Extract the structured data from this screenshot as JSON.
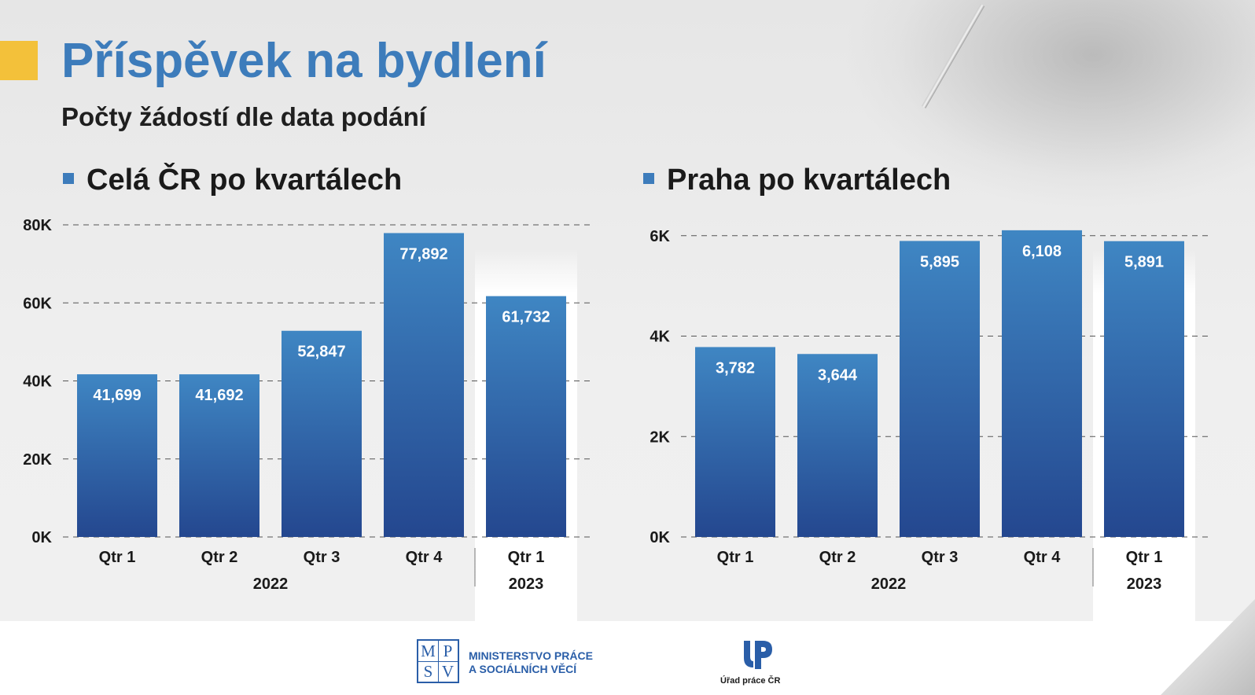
{
  "header": {
    "title": "Příspěvek na bydlení",
    "subtitle": "Počty žádostí dle data podání"
  },
  "colors": {
    "accent": "#f3c13a",
    "title": "#3d7cbb",
    "bar_top": "#3f86c3",
    "bar_bottom": "#24478f"
  },
  "chart_data": [
    {
      "type": "bar",
      "title": "Celá ČR po kvartálech",
      "categories": [
        "Qtr 1",
        "Qtr 2",
        "Qtr 3",
        "Qtr 4",
        "Qtr 1"
      ],
      "year_groups": [
        {
          "label": "2022",
          "count": 4
        },
        {
          "label": "2023",
          "count": 1
        }
      ],
      "values": [
        41699,
        41692,
        52847,
        77892,
        61732
      ],
      "value_labels": [
        "41,699",
        "41,692",
        "52,847",
        "77,892",
        "61,732"
      ],
      "yticks": [
        "0K",
        "20K",
        "40K",
        "60K",
        "80K"
      ],
      "ytick_values": [
        0,
        20000,
        40000,
        60000,
        80000
      ],
      "ylim": [
        0,
        80000
      ],
      "grid": true,
      "highlight_last_group": true
    },
    {
      "type": "bar",
      "title": "Praha po kvartálech",
      "categories": [
        "Qtr 1",
        "Qtr 2",
        "Qtr 3",
        "Qtr 4",
        "Qtr 1"
      ],
      "year_groups": [
        {
          "label": "2022",
          "count": 4
        },
        {
          "label": "2023",
          "count": 1
        }
      ],
      "values": [
        3782,
        3644,
        5895,
        6108,
        5891
      ],
      "value_labels": [
        "3,782",
        "3,644",
        "5,895",
        "6,108",
        "5,891"
      ],
      "yticks": [
        "0K",
        "2K",
        "4K",
        "6K"
      ],
      "ytick_values": [
        0,
        2000,
        4000,
        6000
      ],
      "ylim": [
        0,
        6200
      ],
      "grid": true,
      "highlight_last_group": true
    }
  ],
  "footer": {
    "mpsv_logo": [
      "M",
      "P",
      "S",
      "V"
    ],
    "mpsv_line1": "MINISTERSTVO PRÁCE",
    "mpsv_line2": "A SOCIÁLNÍCH VĚCÍ",
    "up_caption": "Úřad práce ČR"
  }
}
